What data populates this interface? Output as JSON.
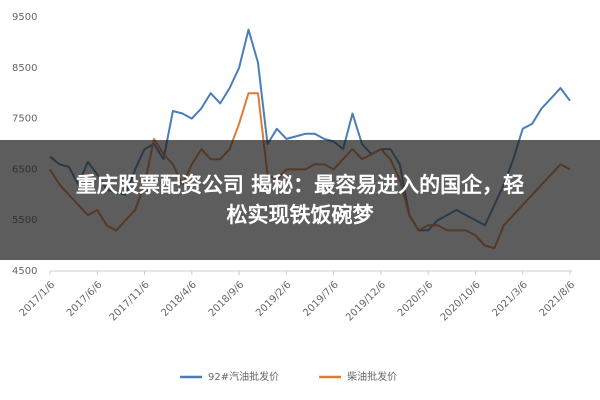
{
  "chart_data": {
    "type": "line",
    "categories": [
      "2017/1/6",
      null,
      null,
      null,
      null,
      "2017/6/6",
      null,
      null,
      null,
      null,
      "2017/11/6",
      null,
      null,
      null,
      null,
      "2018/4/6",
      null,
      null,
      null,
      null,
      "2018/9/6",
      null,
      null,
      null,
      null,
      "2019/2/6",
      null,
      null,
      null,
      null,
      "2019/7/6",
      null,
      null,
      null,
      null,
      "2019/12/6",
      null,
      null,
      null,
      null,
      "2020/5/6",
      null,
      null,
      null,
      null,
      "2020/10/6",
      null,
      null,
      null,
      null,
      "2021/3/6",
      null,
      null,
      null,
      null,
      "2021/8/6"
    ],
    "series": [
      {
        "name": "92#汽油批发价",
        "color": "#4a7eb8",
        "values": [
          6750,
          6600,
          6550,
          6200,
          6650,
          6400,
          6100,
          6050,
          6000,
          6500,
          6900,
          7000,
          6700,
          7650,
          7600,
          7500,
          7700,
          8000,
          7800,
          8100,
          8500,
          9250,
          8600,
          7000,
          7300,
          7100,
          7150,
          7200,
          7200,
          7100,
          7050,
          6900,
          7600,
          7000,
          6800,
          6900,
          6900,
          6600,
          5600,
          5300,
          5300,
          5500,
          5600,
          5700,
          5600,
          5500,
          5400,
          5800,
          6200,
          6700,
          7300,
          7400,
          7700,
          7900,
          8100,
          7850
        ]
      },
      {
        "name": "柴油批发价",
        "color": "#e07a36",
        "values": [
          6500,
          6200,
          6000,
          5800,
          5600,
          5700,
          5400,
          5300,
          5500,
          5700,
          6200,
          7100,
          6800,
          6600,
          6200,
          6600,
          6900,
          6700,
          6700,
          6900,
          7400,
          8000,
          8000,
          6400,
          6300,
          6500,
          6500,
          6500,
          6600,
          6600,
          6500,
          6700,
          6900,
          6700,
          6800,
          6900,
          6700,
          6300,
          5600,
          5300,
          5400,
          5400,
          5300,
          5300,
          5300,
          5200,
          5000,
          4950,
          5400,
          5600,
          5800,
          6000,
          6200,
          6400,
          6600,
          6500
        ]
      }
    ],
    "ylim": [
      4500,
      9500
    ],
    "yticks": [
      4500,
      5500,
      6500,
      7500,
      8500,
      9500
    ],
    "grid": false,
    "legend": "bottom"
  },
  "overlay": {
    "title_line1": "重庆股票配资公司 揭秘：最容易进入的国企，轻",
    "title_line2": "松实现铁饭碗梦"
  }
}
